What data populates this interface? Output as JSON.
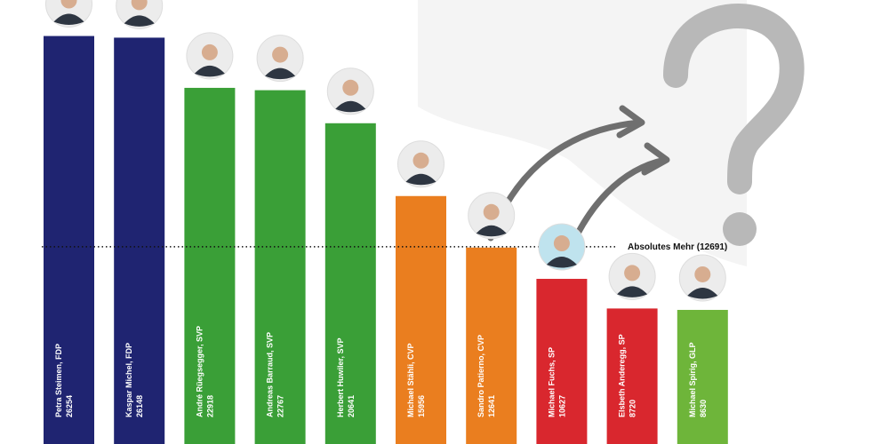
{
  "chart_data": {
    "type": "bar",
    "categories": [
      "Petra Steimen, FDP",
      "Kaspar Michel, FDP",
      "André Rüegsegger, SVP",
      "Andreas Barraud, SVP",
      "Herbert Huwiler, SVP",
      "Michael Stähli, CVP",
      "Sandro Patierno, CVP",
      "Michael Fuchs, SP",
      "Elsbeth Anderegg, SP",
      "Michael Spirig, GLP"
    ],
    "values": [
      26254,
      26148,
      22918,
      22767,
      20641,
      15956,
      12641,
      10627,
      8720,
      8630
    ],
    "value_labels": [
      "26254",
      "26148",
      "22918",
      "22767",
      "20641",
      "15956",
      "12641",
      "10627",
      "8720",
      "8630"
    ],
    "bar_colors": [
      "#1f2471",
      "#1f2471",
      "#3a9f37",
      "#3a9f37",
      "#3a9f37",
      "#ea7e1f",
      "#ea7e1f",
      "#d9272e",
      "#d9272e",
      "#6eb53a"
    ],
    "ylim": [
      0,
      28000
    ],
    "title": "",
    "xlabel": "",
    "ylabel": "",
    "threshold": {
      "value": 12691,
      "label": "Absolutes Mehr (12691)"
    },
    "decorations": {
      "question_mark_color": "#b8b8b8",
      "arrow_color": "#6f6f6f",
      "avatar_icon": "person-photo-icon"
    }
  }
}
